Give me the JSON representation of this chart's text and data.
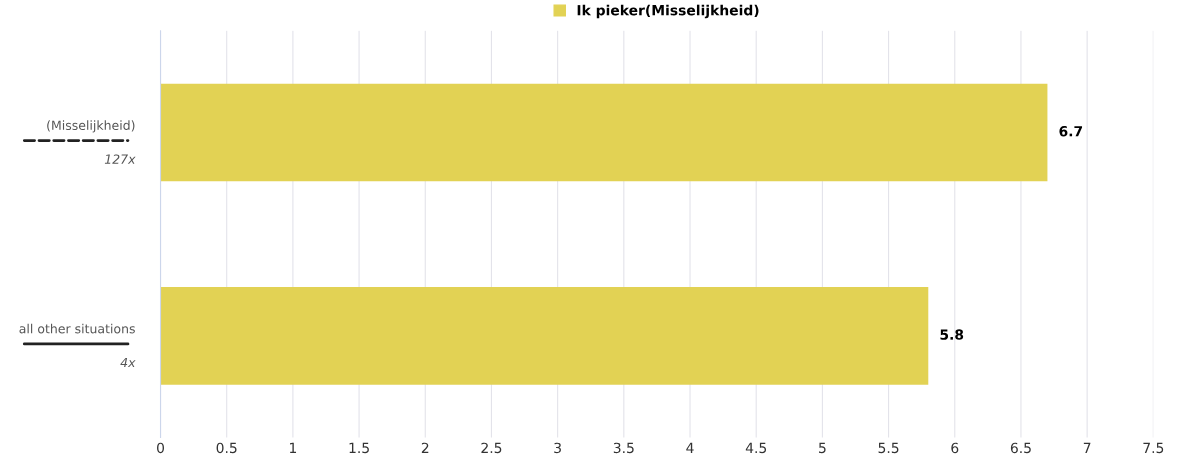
{
  "chart_data": {
    "type": "bar",
    "orientation": "horizontal",
    "categories": [
      "(Misselijkheid)",
      "all other situations"
    ],
    "series": [
      {
        "name": "Ik pieker(Misselijkheid)",
        "color": "#e2d254",
        "values": [
          6.7,
          5.8
        ]
      }
    ],
    "xlim": [
      0,
      7.5
    ],
    "xticks": [
      0,
      0.5,
      1,
      1.5,
      2,
      2.5,
      3,
      3.5,
      4,
      4.5,
      5,
      5.5,
      6,
      6.5,
      7,
      7.5
    ],
    "grid": "x",
    "legend": "top",
    "data_labels": true,
    "annotations": [
      "127x",
      "4x"
    ]
  }
}
